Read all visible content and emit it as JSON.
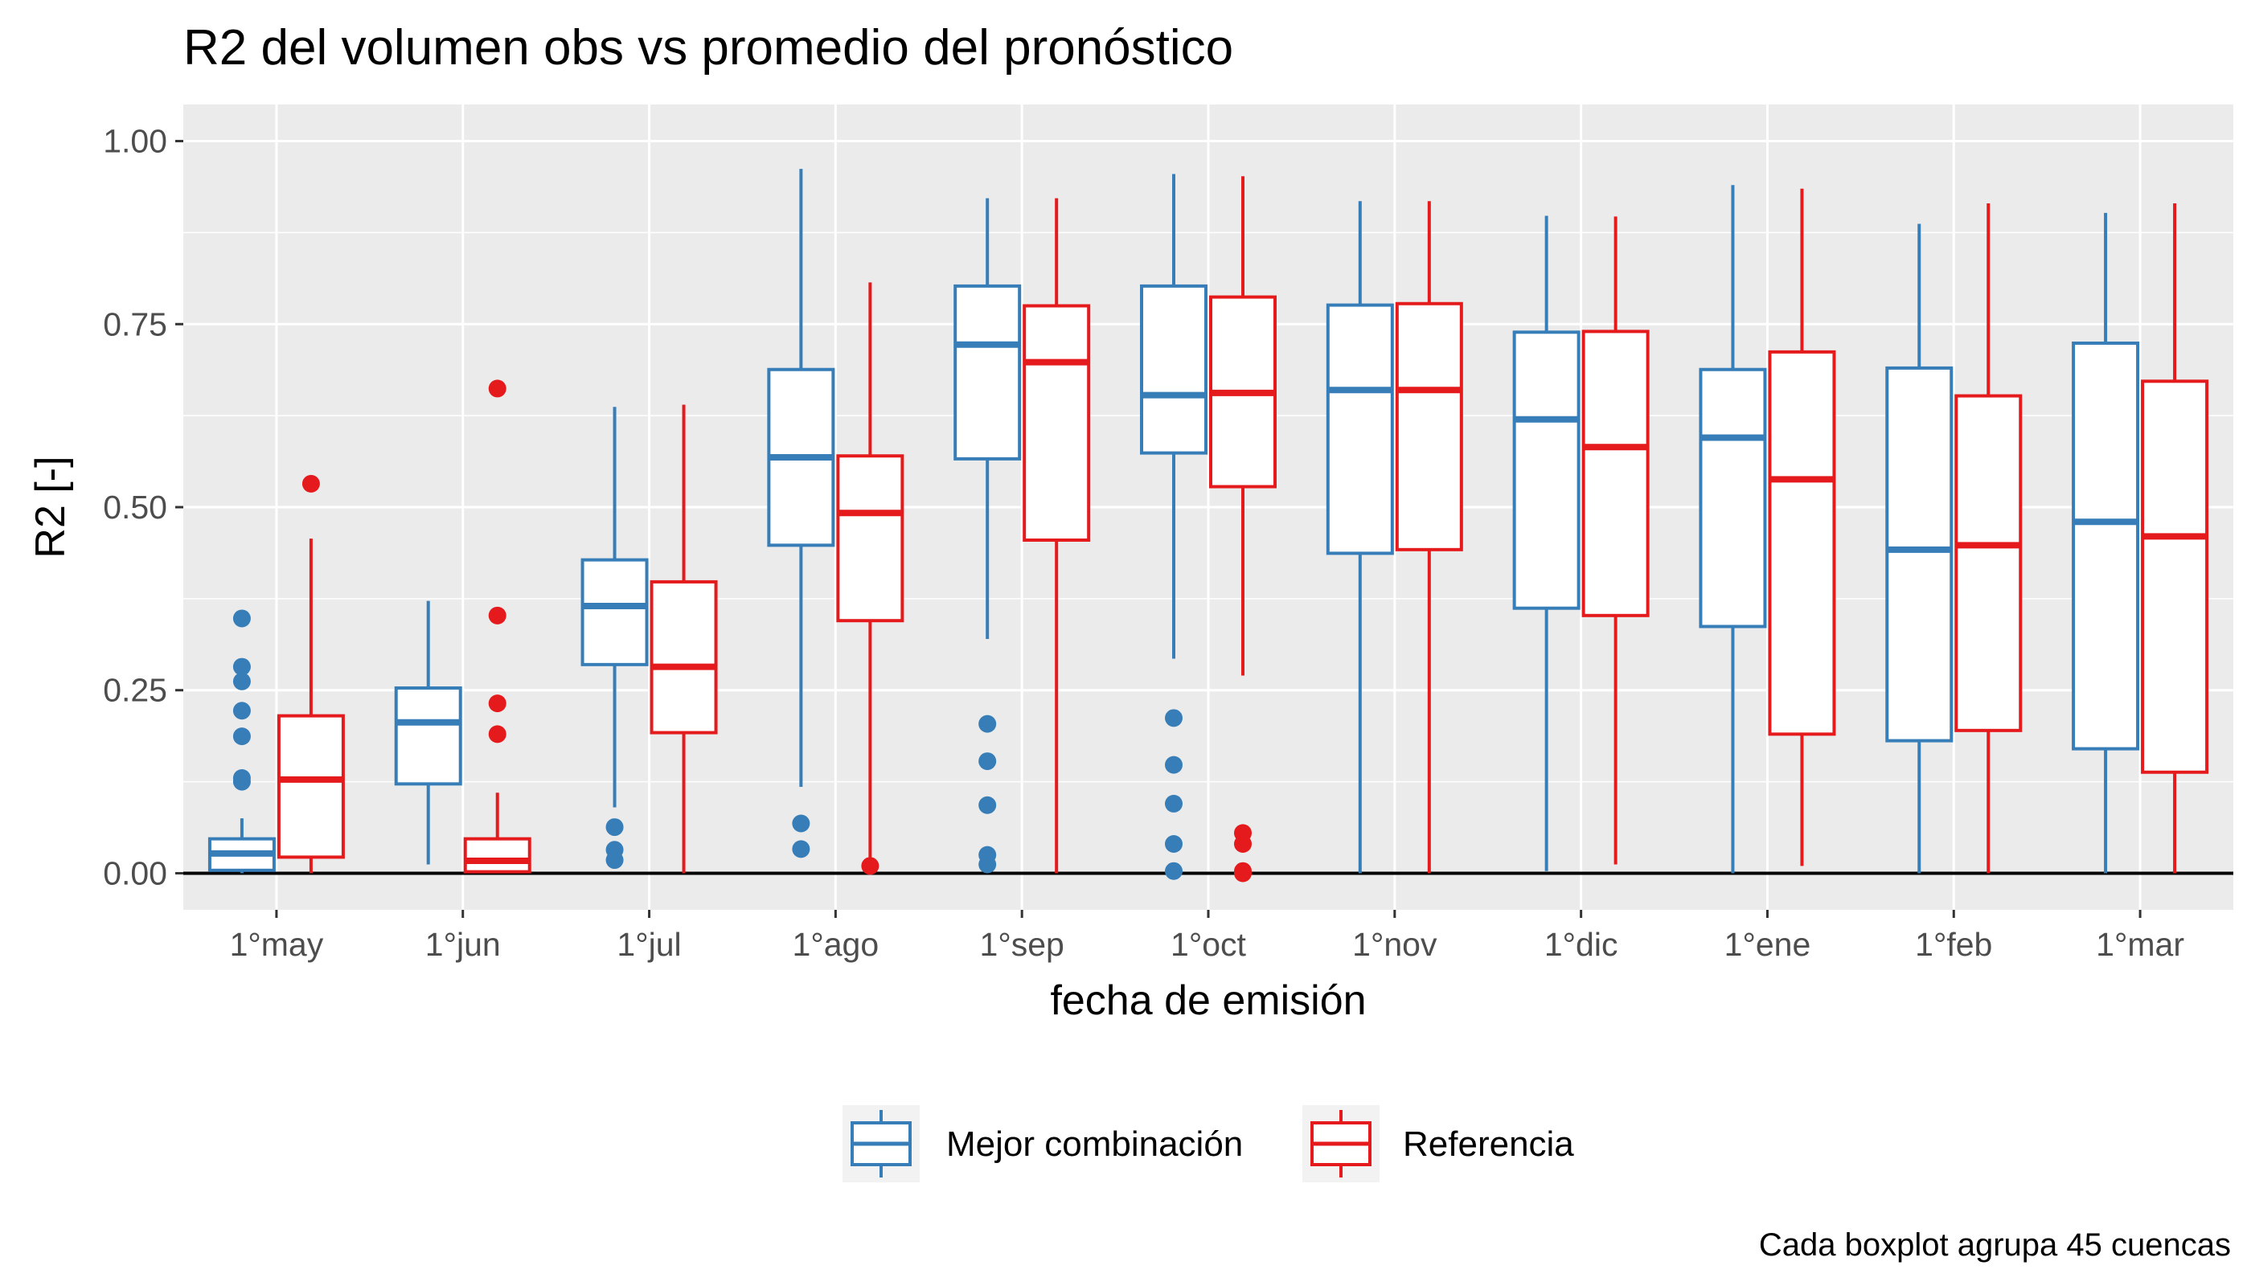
{
  "chart_data": {
    "type": "boxplot",
    "title": "R2 del volumen obs vs promedio del pronóstico",
    "xlabel": "fecha de emisión",
    "ylabel": "R2 [-]",
    "caption": "Cada boxplot agrupa 45 cuencas",
    "ylim": [
      -0.05,
      1.05
    ],
    "yticks": [
      0.0,
      0.25,
      0.5,
      0.75,
      1.0
    ],
    "ytick_labels": [
      "0.00",
      "0.25",
      "0.50",
      "0.75",
      "1.00"
    ],
    "categories": [
      "1°may",
      "1°jun",
      "1°jul",
      "1°ago",
      "1°sep",
      "1°oct",
      "1°nov",
      "1°dic",
      "1°ene",
      "1°feb",
      "1°mar"
    ],
    "grid": true,
    "hline_y": 0,
    "legend_position": "bottom",
    "series": [
      {
        "name": "Mejor combinación",
        "color": "#377EB8",
        "boxes": [
          {
            "lower": 0.0,
            "q1": 0.004,
            "median": 0.027,
            "q3": 0.047,
            "upper": 0.075,
            "outliers": [
              0.125,
              0.13,
              0.187,
              0.222,
              0.262,
              0.282,
              0.348
            ]
          },
          {
            "lower": 0.012,
            "q1": 0.122,
            "median": 0.206,
            "q3": 0.253,
            "upper": 0.372,
            "outliers": []
          },
          {
            "lower": 0.09,
            "q1": 0.285,
            "median": 0.365,
            "q3": 0.428,
            "upper": 0.637,
            "outliers": [
              0.018,
              0.032,
              0.063
            ]
          },
          {
            "lower": 0.118,
            "q1": 0.448,
            "median": 0.568,
            "q3": 0.688,
            "upper": 0.962,
            "outliers": [
              0.033,
              0.068
            ]
          },
          {
            "lower": 0.32,
            "q1": 0.566,
            "median": 0.722,
            "q3": 0.802,
            "upper": 0.922,
            "outliers": [
              0.012,
              0.025,
              0.093,
              0.153,
              0.204
            ]
          },
          {
            "lower": 0.293,
            "q1": 0.574,
            "median": 0.653,
            "q3": 0.802,
            "upper": 0.955,
            "outliers": [
              0.003,
              0.04,
              0.095,
              0.148,
              0.212
            ]
          },
          {
            "lower": 0.0,
            "q1": 0.437,
            "median": 0.66,
            "q3": 0.776,
            "upper": 0.918,
            "outliers": []
          },
          {
            "lower": 0.003,
            "q1": 0.362,
            "median": 0.62,
            "q3": 0.739,
            "upper": 0.898,
            "outliers": []
          },
          {
            "lower": 0.0,
            "q1": 0.337,
            "median": 0.595,
            "q3": 0.688,
            "upper": 0.94,
            "outliers": []
          },
          {
            "lower": 0.0,
            "q1": 0.181,
            "median": 0.442,
            "q3": 0.69,
            "upper": 0.887,
            "outliers": []
          },
          {
            "lower": 0.0,
            "q1": 0.17,
            "median": 0.48,
            "q3": 0.724,
            "upper": 0.902,
            "outliers": []
          }
        ]
      },
      {
        "name": "Referencia",
        "color": "#E41A1C",
        "boxes": [
          {
            "lower": 0.0,
            "q1": 0.022,
            "median": 0.128,
            "q3": 0.215,
            "upper": 0.457,
            "outliers": [
              0.532
            ]
          },
          {
            "lower": 0.0,
            "q1": 0.002,
            "median": 0.017,
            "q3": 0.047,
            "upper": 0.11,
            "outliers": [
              0.19,
              0.232,
              0.352,
              0.662
            ]
          },
          {
            "lower": 0.0,
            "q1": 0.192,
            "median": 0.282,
            "q3": 0.398,
            "upper": 0.64,
            "outliers": []
          },
          {
            "lower": 0.012,
            "q1": 0.345,
            "median": 0.492,
            "q3": 0.57,
            "upper": 0.807,
            "outliers": [
              0.01
            ]
          },
          {
            "lower": 0.0,
            "q1": 0.455,
            "median": 0.698,
            "q3": 0.775,
            "upper": 0.922,
            "outliers": []
          },
          {
            "lower": 0.27,
            "q1": 0.528,
            "median": 0.656,
            "q3": 0.787,
            "upper": 0.952,
            "outliers": [
              0.0,
              0.003,
              0.04,
              0.055
            ]
          },
          {
            "lower": 0.0,
            "q1": 0.442,
            "median": 0.66,
            "q3": 0.778,
            "upper": 0.918,
            "outliers": []
          },
          {
            "lower": 0.012,
            "q1": 0.352,
            "median": 0.582,
            "q3": 0.74,
            "upper": 0.897,
            "outliers": []
          },
          {
            "lower": 0.01,
            "q1": 0.19,
            "median": 0.538,
            "q3": 0.712,
            "upper": 0.935,
            "outliers": []
          },
          {
            "lower": 0.0,
            "q1": 0.195,
            "median": 0.448,
            "q3": 0.652,
            "upper": 0.915,
            "outliers": []
          },
          {
            "lower": 0.0,
            "q1": 0.138,
            "median": 0.46,
            "q3": 0.672,
            "upper": 0.915,
            "outliers": []
          }
        ]
      }
    ]
  }
}
